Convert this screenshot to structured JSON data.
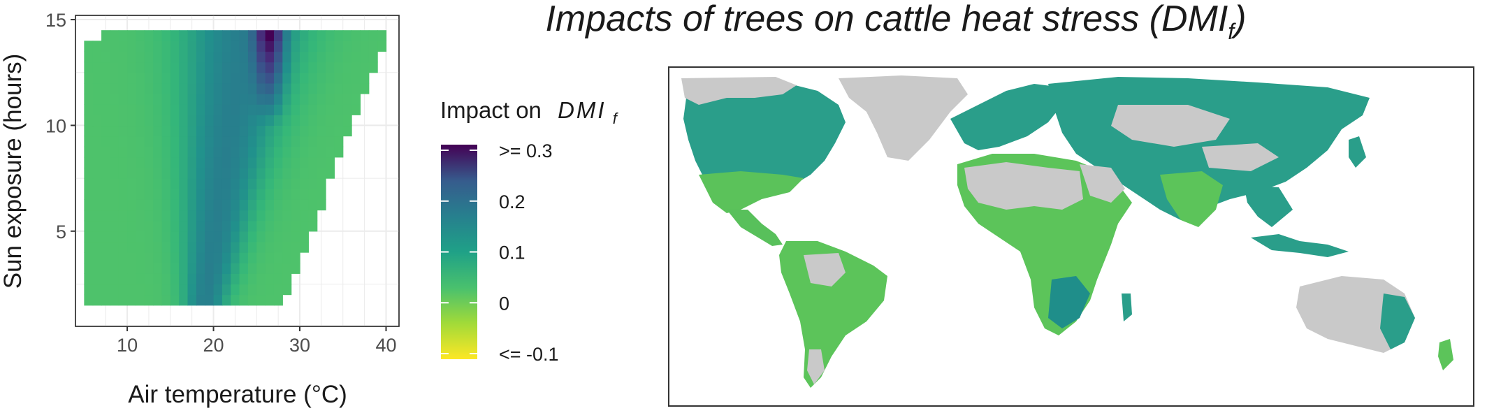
{
  "chart_data": [
    {
      "type": "heatmap",
      "xlabel": "Air temperature (°C)",
      "ylabel": "Sun exposure (hours)",
      "xlim": [
        4,
        41.5
      ],
      "ylim": [
        0.5,
        15.2
      ],
      "xticks": [
        10,
        20,
        30,
        40
      ],
      "yticks": [
        5,
        10,
        15
      ],
      "grid": true,
      "description_of_surface": {
        "x_step": 1,
        "y_step": 0.5,
        "values": "impact on DMIf, ~0 (green) at cool and hot edges, peaking around 0.10–0.15 between 18–24 °C and > 0.25 around 25–27 °C at long sun exposure"
      }
    },
    {
      "type": "map",
      "title": "Impacts of trees on cattle heat stress (DMIf)",
      "title_main": "Impacts of trees on cattle heat stress (DMI",
      "title_sub": "f",
      "title_end": ")"
    }
  ],
  "legend": {
    "title_prefix": "Impact on",
    "title_symbol": "DMI",
    "title_sub": "f",
    "ticks": [
      ">= 0.3",
      "0.2",
      "0.1",
      "0",
      "<= -0.1"
    ],
    "tick_values": [
      0.3,
      0.2,
      0.1,
      0,
      -0.1
    ],
    "colors": [
      "#fde725",
      "#8fd744",
      "#35b779",
      "#21908d",
      "#31688e",
      "#443a83",
      "#440154"
    ]
  }
}
